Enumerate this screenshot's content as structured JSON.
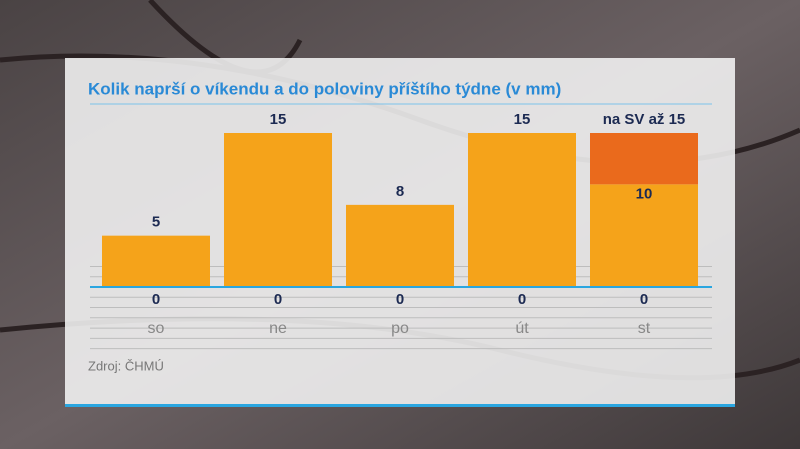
{
  "chart_data": {
    "type": "bar",
    "title": "Kolik naprší o víkendu a do poloviny příštího týdne (v mm)",
    "categories": [
      "so",
      "ne",
      "po",
      "út",
      "st"
    ],
    "series": [
      {
        "color": "#f5a31a",
        "values": [
          5,
          15,
          8,
          15,
          10
        ]
      },
      {
        "color": "#ea6a1c",
        "values": [
          null,
          null,
          null,
          null,
          5
        ]
      }
    ],
    "min_values": [
      0,
      0,
      0,
      0,
      0
    ],
    "annotation": "na SV až 15",
    "source": "Zdroj: ČHMÚ",
    "ylim": [
      0,
      15
    ],
    "grid": true
  }
}
